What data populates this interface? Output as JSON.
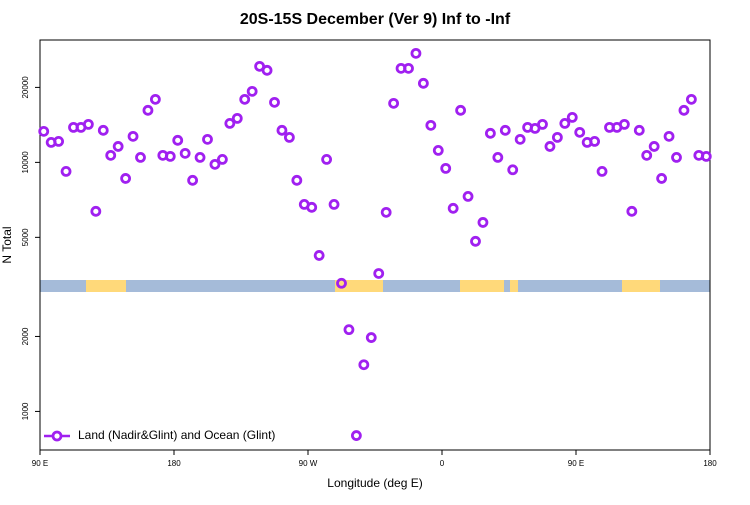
{
  "chart_data": {
    "type": "scatter",
    "title": "20S-15S December (Ver 9)   Inf to -Inf",
    "x_label": "Longitude (deg E)",
    "y_label": "N Total",
    "log_y": true,
    "xlim": [
      90,
      540
    ],
    "ylim": [
      700,
      31000
    ],
    "xticks": [
      {
        "value": 90,
        "label": "90 E"
      },
      {
        "value": 180,
        "label": "180"
      },
      {
        "value": 270,
        "label": "90 W"
      },
      {
        "value": 360,
        "label": "0"
      },
      {
        "value": 450,
        "label": "90 E"
      },
      {
        "value": 540,
        "label": "180"
      }
    ],
    "yticks": [
      1000,
      2000,
      5000,
      10000,
      20000
    ],
    "legend": "bottom-left",
    "series": [
      {
        "name": "Land (Nadir&Glint) and Ocean (Glint)",
        "color": "#a020f0",
        "x": [
          92.5,
          97.5,
          102.5,
          107.5,
          112.5,
          117.5,
          122.5,
          127.5,
          132.5,
          137.5,
          142.5,
          147.5,
          152.5,
          157.5,
          162.5,
          167.5,
          172.5,
          177.5,
          182.5,
          187.5,
          192.5,
          197.5,
          202.5,
          207.5,
          212.5,
          217.5,
          222.5,
          227.5,
          232.5,
          237.5,
          242.5,
          247.5,
          252.5,
          257.5,
          262.5,
          267.5,
          272.5,
          277.5,
          282.5,
          287.5,
          292.5,
          297.5,
          302.5,
          307.5,
          312.5,
          317.5,
          322.5,
          327.5,
          332.5,
          337.5,
          342.5,
          347.5,
          352.5,
          357.5,
          362.5,
          367.5,
          372.5,
          377.5,
          382.5,
          387.5,
          392.5,
          397.5,
          402.5,
          407.5,
          412.5,
          417.5,
          422.5,
          427.5,
          432.5,
          437.5,
          442.5,
          447.5,
          452.5,
          457.5,
          462.5,
          467.5,
          472.5,
          477.5,
          482.5,
          487.5,
          492.5,
          497.5,
          502.5,
          507.5,
          512.5,
          517.5,
          522.5,
          527.5,
          532.5,
          537.5
        ],
        "values": [
          13320,
          12030,
          12140,
          9200,
          13820,
          13820,
          14210,
          6360,
          13450,
          10670,
          11590,
          8620,
          12720,
          10470,
          16180,
          17910,
          10670,
          10570,
          12260,
          10870,
          8470,
          10470,
          12370,
          9820,
          10280,
          14340,
          15020,
          17910,
          19280,
          24300,
          23420,
          17420,
          13450,
          12600,
          8470,
          6780,
          6600,
          4230,
          10280,
          6780,
          3270,
          2130,
          800,
          1540,
          1980,
          3580,
          6300,
          17260,
          23850,
          23850,
          27400,
          20770,
          14080,
          11170,
          9460,
          6540,
          16180,
          7300,
          4820,
          5740,
          13080,
          10470,
          13450,
          9340,
          12370,
          13820,
          13690,
          14210,
          11590,
          12600,
          14340,
          15160,
          13200,
          12030,
          12140,
          9200,
          13820,
          13820,
          14210,
          6360,
          13450,
          10670,
          11590,
          8620,
          12720,
          10470,
          16180,
          17910,
          10670,
          10570
        ]
      }
    ]
  }
}
